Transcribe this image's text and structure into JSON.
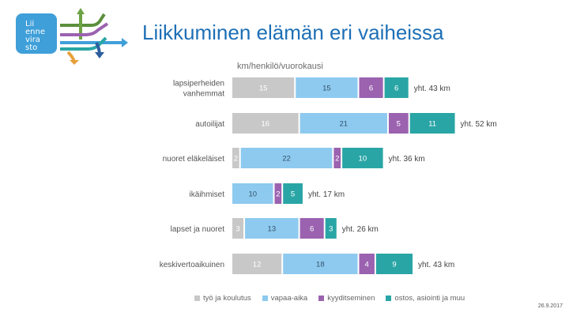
{
  "header": {
    "title": "Liikkuminen elämän eri vaiheissa",
    "logo_lines": [
      "Lii",
      "enne",
      "vira",
      "sto"
    ]
  },
  "footer": {
    "date": "26.9.2017"
  },
  "chart_data": {
    "type": "bar",
    "orientation": "horizontal",
    "stacked": true,
    "title": "",
    "unit_label": "km/henkilö/vuorokausi",
    "xlabel": "",
    "ylabel": "",
    "grid": false,
    "legend_position": "bottom",
    "categories": [
      "lapsiperheiden vanhemmat",
      "autoilijat",
      "nuoret eläkeläiset",
      "ikäihmiset",
      "lapset ja nuoret",
      "keskivertoaikuinen"
    ],
    "category_lines": [
      [
        "lapsiperheiden",
        "vanhemmat"
      ],
      [
        "autoilijat"
      ],
      [
        "nuoret eläkeläiset"
      ],
      [
        "ikäihmiset"
      ],
      [
        "lapset ja nuoret"
      ],
      [
        "keskivertoaikuinen"
      ]
    ],
    "series": [
      {
        "name": "työ ja koulutus",
        "color": "#c8c8c8",
        "values": [
          15,
          16,
          2,
          0,
          3,
          12
        ]
      },
      {
        "name": "vapaa-aika",
        "color": "#8ecaef",
        "values": [
          15,
          21,
          22,
          10,
          13,
          18
        ]
      },
      {
        "name": "kyyditseminen",
        "color": "#9b62b0",
        "values": [
          6,
          5,
          2,
          2,
          6,
          4
        ]
      },
      {
        "name": "ostos, asiointi ja muu",
        "color": "#2aa5a6",
        "values": [
          6,
          11,
          10,
          5,
          3,
          9
        ]
      }
    ],
    "totals": [
      "yht. 43 km",
      "yht. 52 km",
      "yht. 36 km",
      "yht. 17 km",
      "yht. 26 km",
      "yht. 43 km"
    ]
  }
}
